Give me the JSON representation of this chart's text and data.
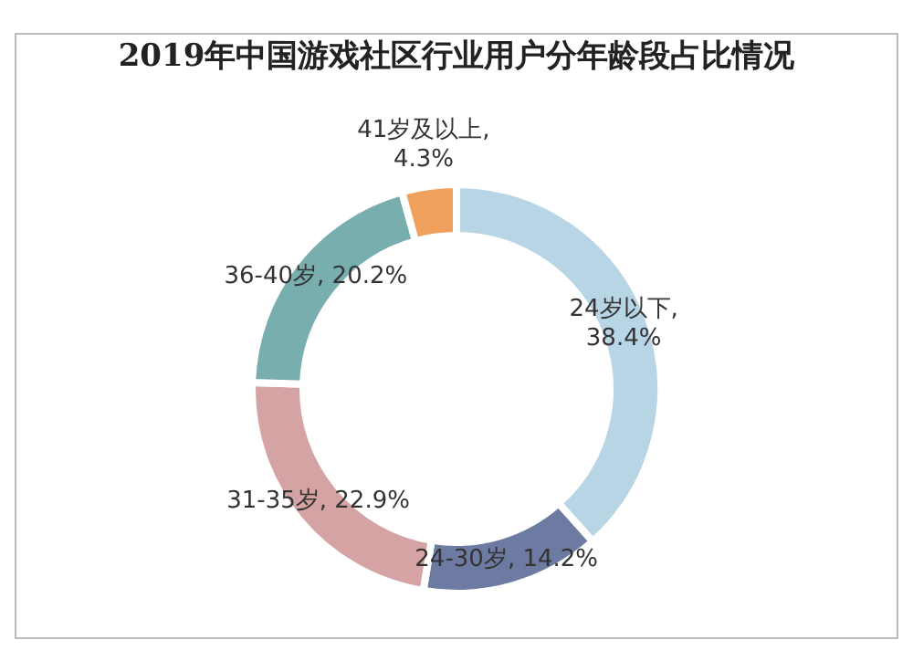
{
  "chart_data": {
    "type": "donut",
    "title": "2019年中国游戏社区行业用户分年龄段占比情况",
    "categories": [
      "24岁以下",
      "24-30岁",
      "31-35岁",
      "36-40岁",
      "41岁及以上"
    ],
    "values": [
      38.4,
      14.2,
      22.9,
      20.2,
      4.3
    ],
    "value_labels": [
      ", 38.4%",
      ", 14.2%",
      ", 22.9%",
      ", 20.2%",
      ", 4.3%"
    ],
    "colors": [
      "#b8d5e5",
      "#6d7ba3",
      "#d5a3a3",
      "#78afae",
      "#eea05c"
    ],
    "legend": false
  }
}
